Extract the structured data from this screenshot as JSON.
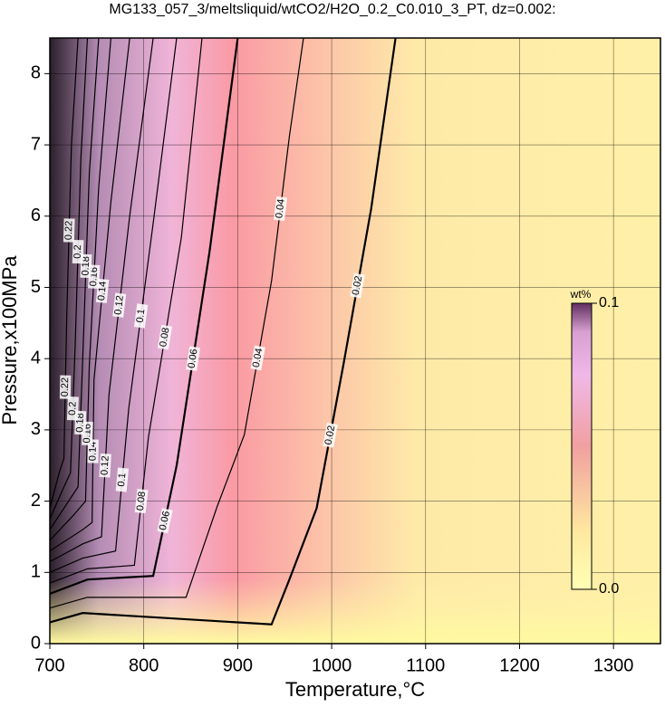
{
  "chart_data": {
    "type": "contour",
    "title": "MG133_057_3/meltsliquid/wtCO2/H2O_0.2_C0.010_3_PT, dz=0.002:",
    "xlabel": "Temperature,°C",
    "ylabel": "Pressure,x100MPa",
    "xlim": [
      700,
      1350
    ],
    "ylim": [
      0,
      8.5
    ],
    "xticks": [
      700,
      800,
      900,
      1000,
      1100,
      1200,
      1300
    ],
    "yticks": [
      0,
      1,
      2,
      3,
      4,
      5,
      6,
      7,
      8
    ],
    "grid": true,
    "contours": [
      {
        "level": 0.02,
        "x": [
          700,
          735,
          936,
          955,
          984,
          1013,
          1042,
          1068
        ],
        "y": [
          0.3,
          0.43,
          0.27,
          0.9,
          1.9,
          3.95,
          6.1,
          8.5
        ]
      },
      {
        "level": 0.04,
        "x": [
          700,
          740,
          845,
          878,
          907,
          936,
          955,
          970
        ],
        "y": [
          0.5,
          0.65,
          0.65,
          1.92,
          2.93,
          5.09,
          7.12,
          8.5
        ]
      },
      {
        "level": 0.06,
        "x": [
          700,
          740,
          810,
          835,
          870,
          900
        ],
        "y": [
          0.7,
          0.9,
          0.95,
          2.5,
          5.5,
          8.5
        ]
      },
      {
        "level": 0.08,
        "x": [
          700,
          740,
          790,
          805,
          840,
          862
        ],
        "y": [
          0.85,
          1.05,
          1.1,
          2.9,
          5.7,
          8.5
        ]
      },
      {
        "level": 0.1,
        "x": [
          700,
          735,
          770,
          784,
          810,
          835
        ],
        "y": [
          1.0,
          1.2,
          1.3,
          3.3,
          5.9,
          8.5
        ]
      },
      {
        "level": 0.12,
        "x": [
          700,
          735,
          755,
          763,
          785,
          810
        ],
        "y": [
          1.15,
          1.4,
          1.5,
          3.5,
          6.0,
          8.5
        ]
      },
      {
        "level": 0.14,
        "x": [
          700,
          735,
          745,
          747,
          765,
          785
        ],
        "y": [
          1.3,
          1.6,
          1.7,
          3.7,
          6.2,
          8.5
        ]
      },
      {
        "level": 0.16,
        "x": [
          700,
          725,
          738,
          742,
          752,
          765
        ],
        "y": [
          1.45,
          1.8,
          2.0,
          3.9,
          6.4,
          8.5
        ]
      },
      {
        "level": 0.18,
        "x": [
          700,
          720,
          730,
          735,
          742,
          752
        ],
        "y": [
          1.6,
          2.0,
          2.2,
          4.0,
          6.6,
          8.5
        ]
      },
      {
        "level": 0.2,
        "x": [
          700,
          715,
          722,
          727,
          733,
          740
        ],
        "y": [
          1.75,
          2.2,
          2.4,
          4.2,
          6.8,
          8.5
        ]
      },
      {
        "level": 0.22,
        "x": [
          700,
          710,
          715,
          718,
          723,
          730
        ],
        "y": [
          1.9,
          2.4,
          2.6,
          4.6,
          7.0,
          8.5
        ]
      }
    ],
    "colorbar": {
      "label": "wt%",
      "lim": [
        0,
        0.1
      ],
      "ticks": [
        {
          "value": 0,
          "label": "0.0"
        },
        0.1
      ]
    }
  }
}
